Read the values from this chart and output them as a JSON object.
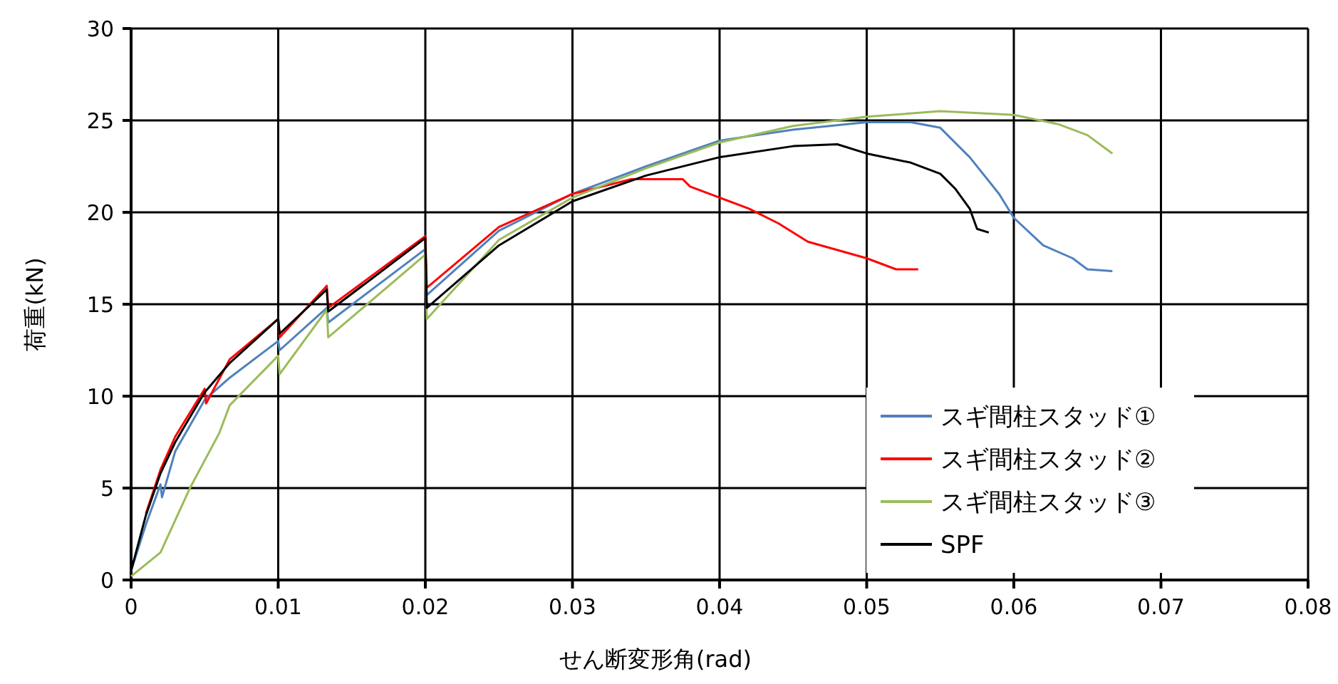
{
  "chart_data": {
    "type": "line",
    "xlabel": "せん断変形角(rad)",
    "ylabel": "荷重(kN)",
    "xlim": [
      0,
      0.08
    ],
    "ylim": [
      0,
      30
    ],
    "xticks": [
      0,
      0.01,
      0.02,
      0.03,
      0.04,
      0.05,
      0.06,
      0.07,
      0.08
    ],
    "yticks": [
      0,
      5,
      10,
      15,
      20,
      25,
      30
    ],
    "grid": true,
    "legend": "bottom right",
    "line_style": "solid",
    "marker": "none",
    "series": [
      {
        "name": "スギ間柱スタッド①",
        "color": "#4f81bd",
        "x": [
          0,
          0.001,
          0.002,
          0.0021,
          0.003,
          0.005,
          0.0067,
          0.01,
          0.0101,
          0.0133,
          0.0134,
          0.02,
          0.0201,
          0.025,
          0.03,
          0.035,
          0.04,
          0.045,
          0.05,
          0.053,
          0.055,
          0.057,
          0.059,
          0.06,
          0.062,
          0.064,
          0.065,
          0.0667
        ],
        "values": [
          0.5,
          3,
          5.2,
          4.5,
          7,
          9.8,
          11,
          13,
          12.5,
          14.8,
          14,
          18,
          15.5,
          19,
          21,
          22.5,
          23.9,
          24.5,
          24.9,
          24.9,
          24.6,
          23,
          21,
          19.7,
          18.2,
          17.5,
          16.9,
          16.8
        ]
      },
      {
        "name": "スギ間柱スタッド②",
        "color": "#ff0000",
        "x": [
          0.001,
          0.002,
          0.003,
          0.005,
          0.0051,
          0.0067,
          0.01,
          0.0101,
          0.0133,
          0.0134,
          0.02,
          0.0201,
          0.025,
          0.03,
          0.034,
          0.0375,
          0.038,
          0.04,
          0.042,
          0.044,
          0.046,
          0.05,
          0.052,
          0.0535
        ],
        "values": [
          3.6,
          6,
          7.8,
          10.4,
          9.6,
          12,
          14.2,
          13.2,
          16,
          14.8,
          18.7,
          15.9,
          19.2,
          21,
          21.8,
          21.8,
          21.4,
          20.8,
          20.2,
          19.4,
          18.4,
          17.5,
          16.9,
          16.9
        ]
      },
      {
        "name": "スギ間柱スタッド③",
        "color": "#9bbb59",
        "x": [
          0,
          0.002,
          0.004,
          0.006,
          0.0067,
          0.01,
          0.0101,
          0.0133,
          0.0134,
          0.02,
          0.0201,
          0.025,
          0.03,
          0.035,
          0.04,
          0.045,
          0.05,
          0.055,
          0.06,
          0.063,
          0.065,
          0.0667
        ],
        "values": [
          0.2,
          1.5,
          5,
          8,
          9.5,
          12.2,
          11.2,
          14.7,
          13.2,
          17.7,
          14.2,
          18.5,
          20.8,
          22.4,
          23.8,
          24.7,
          25.2,
          25.5,
          25.3,
          24.8,
          24.2,
          23.2
        ]
      },
      {
        "name": "SPF",
        "color": "#000000",
        "x": [
          0,
          0.001,
          0.002,
          0.003,
          0.005,
          0.0067,
          0.01,
          0.0101,
          0.0133,
          0.0134,
          0.02,
          0.0201,
          0.025,
          0.03,
          0.035,
          0.04,
          0.045,
          0.048,
          0.05,
          0.053,
          0.055,
          0.056,
          0.057,
          0.0575,
          0.0583
        ],
        "values": [
          0.5,
          3.5,
          5.8,
          7.5,
          10.2,
          11.8,
          14.2,
          13.4,
          15.8,
          14.6,
          18.6,
          14.8,
          18.2,
          20.6,
          22,
          23,
          23.6,
          23.7,
          23.2,
          22.7,
          22.1,
          21.3,
          20.2,
          19.1,
          18.9
        ]
      }
    ]
  }
}
